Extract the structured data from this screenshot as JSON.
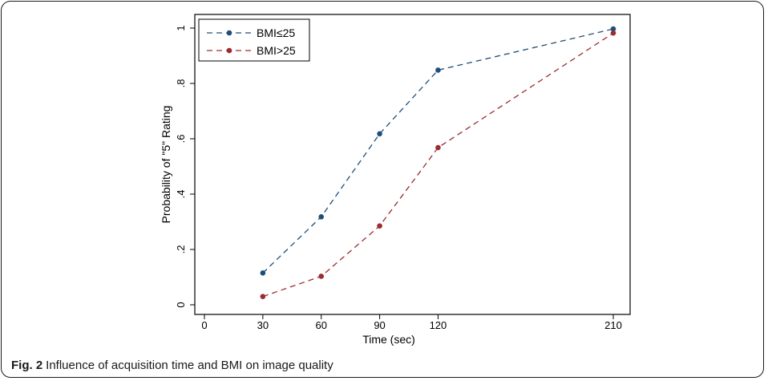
{
  "caption": {
    "label": "Fig. 2",
    "text": "Influence of acquisition time and BMI on image quality"
  },
  "chart_data": {
    "type": "line",
    "title": "",
    "xlabel": "Time (sec)",
    "ylabel": "Probability of \"5\" Rating",
    "x": [
      30,
      60,
      90,
      120,
      210
    ],
    "xticks": [
      0,
      30,
      60,
      90,
      120,
      210
    ],
    "xlim": [
      0,
      210
    ],
    "yticks": [
      0,
      0.2,
      0.4,
      0.6,
      0.8,
      1
    ],
    "ytick_labels": [
      "0",
      ".2",
      ".4",
      ".6",
      ".8",
      "1"
    ],
    "ylim": [
      0,
      1
    ],
    "grid": true,
    "legend_position": "top-left",
    "series": [
      {
        "name": "BMI≤25",
        "values": [
          0.115,
          0.318,
          0.618,
          0.848,
          0.997
        ],
        "color": "#1f4e79",
        "line_style": "dashed"
      },
      {
        "name": "BMI>25",
        "values": [
          0.03,
          0.103,
          0.285,
          0.568,
          0.982
        ],
        "color": "#9b2d30",
        "line_style": "dashed"
      }
    ]
  }
}
